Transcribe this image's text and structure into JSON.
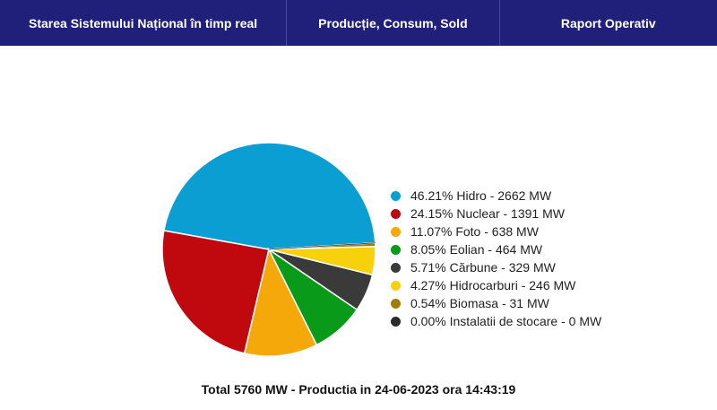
{
  "nav": {
    "tabs": [
      {
        "label": "Starea Sistemului Național în timp real"
      },
      {
        "label": "Producție, Consum, Sold"
      },
      {
        "label": "Raport Operativ"
      }
    ]
  },
  "chart_data": {
    "type": "pie",
    "total_mw": 5760,
    "legend_position": "right",
    "slices": [
      {
        "name": "Hidro",
        "percent": 46.21,
        "value": 2662,
        "color": "#0b9ed2",
        "label": "46.21% Hidro - 2662 MW"
      },
      {
        "name": "Nuclear",
        "percent": 24.15,
        "value": 1391,
        "color": "#c0080f",
        "label": "24.15% Nuclear - 1391 MW"
      },
      {
        "name": "Foto",
        "percent": 11.07,
        "value": 638,
        "color": "#f5a80a",
        "label": "11.07% Foto - 638 MW"
      },
      {
        "name": "Eolian",
        "percent": 8.05,
        "value": 464,
        "color": "#0a9a1a",
        "label": "8.05% Eolian - 464 MW"
      },
      {
        "name": "Cărbune",
        "percent": 5.71,
        "value": 329,
        "color": "#3a3a3a",
        "label": "5.71% Cărbune - 329 MW"
      },
      {
        "name": "Hidrocarburi",
        "percent": 4.27,
        "value": 246,
        "color": "#f7d20c",
        "label": "4.27% Hidrocarburi - 246 MW"
      },
      {
        "name": "Biomasa",
        "percent": 0.54,
        "value": 31,
        "color": "#a07d08",
        "label": "0.54% Biomasa - 31 MW"
      },
      {
        "name": "Instalatii de stocare",
        "percent": 0.0,
        "value": 0,
        "color": "#2a2a2a",
        "label": "0.00% Instalatii de stocare - 0 MW"
      }
    ]
  },
  "footer": {
    "text": "Total 5760 MW - Productia in 24-06-2023 ora 14:43:19"
  }
}
